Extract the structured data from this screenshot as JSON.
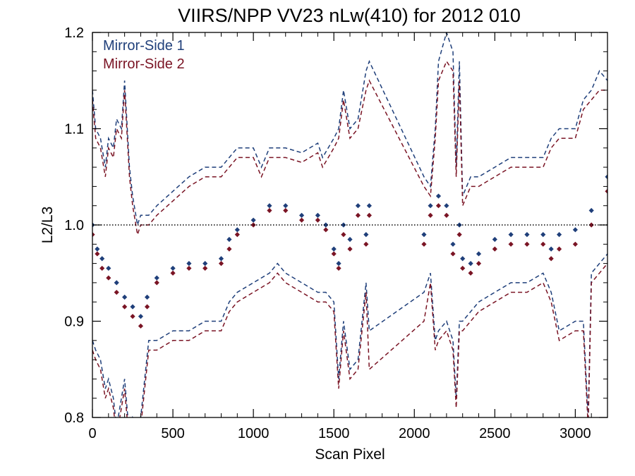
{
  "chart_data": {
    "type": "scatter",
    "title": "VIIRS/NPP VV23 nLw(410) for 2012 010",
    "xlabel": "Scan Pixel",
    "ylabel": "L2/L3",
    "xlim": [
      0,
      3200
    ],
    "ylim": [
      0.8,
      1.2
    ],
    "x_ticks": [
      0,
      500,
      1000,
      1500,
      2000,
      2500,
      3000
    ],
    "y_ticks": [
      0.8,
      0.9,
      1.0,
      1.1,
      1.2
    ],
    "x_tick_labels": [
      "0",
      "500",
      "1000",
      "1500",
      "2000",
      "2500",
      "3000"
    ],
    "y_tick_labels": [
      "0.8",
      "0.9",
      "1.0",
      "1.1",
      "1.2"
    ],
    "reference_line": 1.0,
    "legend_position": "top-left",
    "colors": {
      "ms1": "#1f3f7a",
      "ms2": "#7a1424"
    },
    "series": [
      {
        "name": "Mirror-Side 1",
        "color": "#1f3f7a",
        "marker": "diamond",
        "x": [
          0,
          30,
          60,
          100,
          150,
          200,
          250,
          300,
          340,
          400,
          500,
          600,
          700,
          800,
          850,
          900,
          1000,
          1100,
          1200,
          1300,
          1400,
          1450,
          1500,
          1530,
          1560,
          1600,
          1650,
          1700,
          1720,
          2060,
          2100,
          2150,
          2200,
          2240,
          2280,
          2300,
          2350,
          2400,
          2500,
          2600,
          2700,
          2800,
          2850,
          2900,
          3000,
          3100,
          3200
        ],
        "y": [
          1.0,
          0.975,
          0.965,
          0.955,
          0.94,
          0.925,
          0.915,
          0.905,
          0.925,
          0.945,
          0.955,
          0.96,
          0.96,
          0.965,
          0.985,
          0.995,
          1.005,
          1.02,
          1.02,
          1.01,
          1.01,
          1.0,
          0.975,
          0.96,
          1.0,
          0.985,
          1.02,
          0.99,
          1.02,
          0.99,
          1.02,
          1.03,
          1.02,
          0.98,
          1.0,
          0.965,
          0.96,
          0.97,
          0.985,
          0.99,
          0.99,
          0.99,
          0.975,
          0.99,
          0.995,
          1.015,
          1.05
        ]
      },
      {
        "name": "Mirror-Side 2",
        "color": "#7a1424",
        "marker": "diamond",
        "x": [
          0,
          30,
          60,
          100,
          150,
          200,
          250,
          300,
          340,
          400,
          500,
          600,
          700,
          800,
          850,
          900,
          1000,
          1100,
          1200,
          1300,
          1400,
          1450,
          1500,
          1530,
          1560,
          1600,
          1650,
          1700,
          1720,
          2060,
          2100,
          2150,
          2200,
          2240,
          2280,
          2300,
          2350,
          2400,
          2500,
          2600,
          2700,
          2800,
          2850,
          2900,
          3000,
          3100,
          3200
        ],
        "y": [
          0.99,
          0.97,
          0.955,
          0.945,
          0.93,
          0.915,
          0.905,
          0.895,
          0.915,
          0.94,
          0.95,
          0.955,
          0.955,
          0.96,
          0.975,
          0.99,
          1.0,
          1.015,
          1.015,
          1.005,
          1.005,
          0.995,
          0.97,
          0.955,
          0.99,
          0.975,
          1.01,
          0.98,
          1.01,
          0.98,
          1.01,
          1.02,
          1.01,
          0.97,
          0.99,
          0.955,
          0.95,
          0.96,
          0.975,
          0.98,
          0.98,
          0.98,
          0.965,
          0.975,
          0.98,
          1.0,
          1.035
        ]
      }
    ],
    "envelopes": [
      {
        "series": "Mirror-Side 1",
        "style": "dashed",
        "upper": {
          "x": [
            0,
            20,
            50,
            80,
            100,
            130,
            150,
            180,
            200,
            230,
            250,
            280,
            300,
            350,
            400,
            500,
            600,
            700,
            800,
            850,
            900,
            1000,
            1050,
            1100,
            1200,
            1300,
            1400,
            1430,
            1500,
            1530,
            1560,
            1600,
            1650,
            1700,
            1720,
            2060,
            2100,
            2130,
            2150,
            2200,
            2240,
            2260,
            2280,
            2300,
            2350,
            2400,
            2500,
            2600,
            2700,
            2800,
            2850,
            2900,
            3000,
            3050,
            3100,
            3150,
            3200
          ],
          "y": [
            1.14,
            1.1,
            1.09,
            1.06,
            1.09,
            1.08,
            1.11,
            1.1,
            1.15,
            1.06,
            1.03,
            1.0,
            1.01,
            1.01,
            1.02,
            1.035,
            1.05,
            1.06,
            1.06,
            1.07,
            1.08,
            1.08,
            1.06,
            1.08,
            1.08,
            1.075,
            1.085,
            1.07,
            1.09,
            1.1,
            1.14,
            1.1,
            1.11,
            1.16,
            1.17,
            1.05,
            1.04,
            1.1,
            1.17,
            1.2,
            1.18,
            1.06,
            1.17,
            1.03,
            1.05,
            1.05,
            1.06,
            1.07,
            1.07,
            1.07,
            1.09,
            1.1,
            1.1,
            1.13,
            1.14,
            1.16,
            1.15
          ]
        },
        "lower": {
          "x": [
            0,
            20,
            50,
            80,
            100,
            130,
            150,
            180,
            200,
            230,
            250,
            280,
            300,
            350,
            400,
            500,
            600,
            700,
            800,
            850,
            900,
            1000,
            1100,
            1150,
            1200,
            1300,
            1400,
            1450,
            1500,
            1530,
            1560,
            1600,
            1650,
            1700,
            1720,
            2060,
            2100,
            2130,
            2150,
            2200,
            2240,
            2260,
            2280,
            2300,
            2350,
            2400,
            2500,
            2600,
            2700,
            2800,
            2850,
            2900,
            3000,
            3050,
            3080,
            3100,
            3150,
            3200
          ],
          "y": [
            0.88,
            0.87,
            0.86,
            0.83,
            0.84,
            0.82,
            0.79,
            0.82,
            0.84,
            0.78,
            0.8,
            0.79,
            0.8,
            0.88,
            0.88,
            0.89,
            0.89,
            0.9,
            0.9,
            0.92,
            0.93,
            0.94,
            0.95,
            0.96,
            0.95,
            0.94,
            0.93,
            0.93,
            0.92,
            0.84,
            0.9,
            0.85,
            0.86,
            0.94,
            0.89,
            0.93,
            0.95,
            0.88,
            0.89,
            0.9,
            0.88,
            0.82,
            0.9,
            0.9,
            0.91,
            0.92,
            0.93,
            0.94,
            0.94,
            0.95,
            0.93,
            0.89,
            0.9,
            0.9,
            0.8,
            0.95,
            0.96,
            0.97
          ]
        }
      },
      {
        "series": "Mirror-Side 2",
        "style": "dashed",
        "upper": {
          "x": [
            0,
            20,
            50,
            80,
            100,
            130,
            150,
            180,
            200,
            230,
            250,
            280,
            300,
            350,
            400,
            500,
            600,
            700,
            800,
            850,
            900,
            1000,
            1050,
            1100,
            1200,
            1300,
            1400,
            1430,
            1500,
            1530,
            1560,
            1600,
            1650,
            1700,
            1720,
            2060,
            2100,
            2130,
            2150,
            2200,
            2240,
            2260,
            2280,
            2300,
            2350,
            2400,
            2500,
            2600,
            2700,
            2800,
            2850,
            2900,
            3000,
            3050,
            3100,
            3150,
            3200
          ],
          "y": [
            1.13,
            1.09,
            1.08,
            1.05,
            1.08,
            1.07,
            1.1,
            1.09,
            1.14,
            1.05,
            1.02,
            0.99,
            1.0,
            1.0,
            1.01,
            1.025,
            1.04,
            1.05,
            1.05,
            1.06,
            1.07,
            1.07,
            1.05,
            1.07,
            1.07,
            1.065,
            1.075,
            1.06,
            1.08,
            1.09,
            1.13,
            1.09,
            1.1,
            1.14,
            1.15,
            1.04,
            1.03,
            1.09,
            1.15,
            1.17,
            1.16,
            1.05,
            1.15,
            1.02,
            1.04,
            1.04,
            1.05,
            1.06,
            1.06,
            1.06,
            1.08,
            1.09,
            1.09,
            1.12,
            1.13,
            1.14,
            1.14
          ]
        },
        "lower": {
          "x": [
            0,
            20,
            50,
            80,
            100,
            130,
            150,
            180,
            200,
            230,
            250,
            280,
            300,
            350,
            400,
            500,
            600,
            700,
            800,
            850,
            900,
            1000,
            1100,
            1150,
            1200,
            1300,
            1400,
            1450,
            1500,
            1530,
            1560,
            1600,
            1650,
            1700,
            1720,
            2060,
            2100,
            2130,
            2150,
            2200,
            2240,
            2260,
            2280,
            2300,
            2350,
            2400,
            2500,
            2600,
            2700,
            2800,
            2850,
            2900,
            3000,
            3050,
            3080,
            3100,
            3150,
            3200
          ],
          "y": [
            0.87,
            0.86,
            0.85,
            0.82,
            0.83,
            0.81,
            0.78,
            0.81,
            0.83,
            0.77,
            0.79,
            0.78,
            0.79,
            0.87,
            0.87,
            0.88,
            0.88,
            0.89,
            0.89,
            0.91,
            0.92,
            0.93,
            0.94,
            0.95,
            0.94,
            0.93,
            0.92,
            0.92,
            0.91,
            0.83,
            0.89,
            0.84,
            0.85,
            0.93,
            0.85,
            0.9,
            0.94,
            0.87,
            0.88,
            0.89,
            0.87,
            0.81,
            0.89,
            0.89,
            0.9,
            0.91,
            0.92,
            0.93,
            0.93,
            0.94,
            0.92,
            0.88,
            0.89,
            0.89,
            0.79,
            0.94,
            0.95,
            0.96
          ]
        }
      }
    ]
  }
}
